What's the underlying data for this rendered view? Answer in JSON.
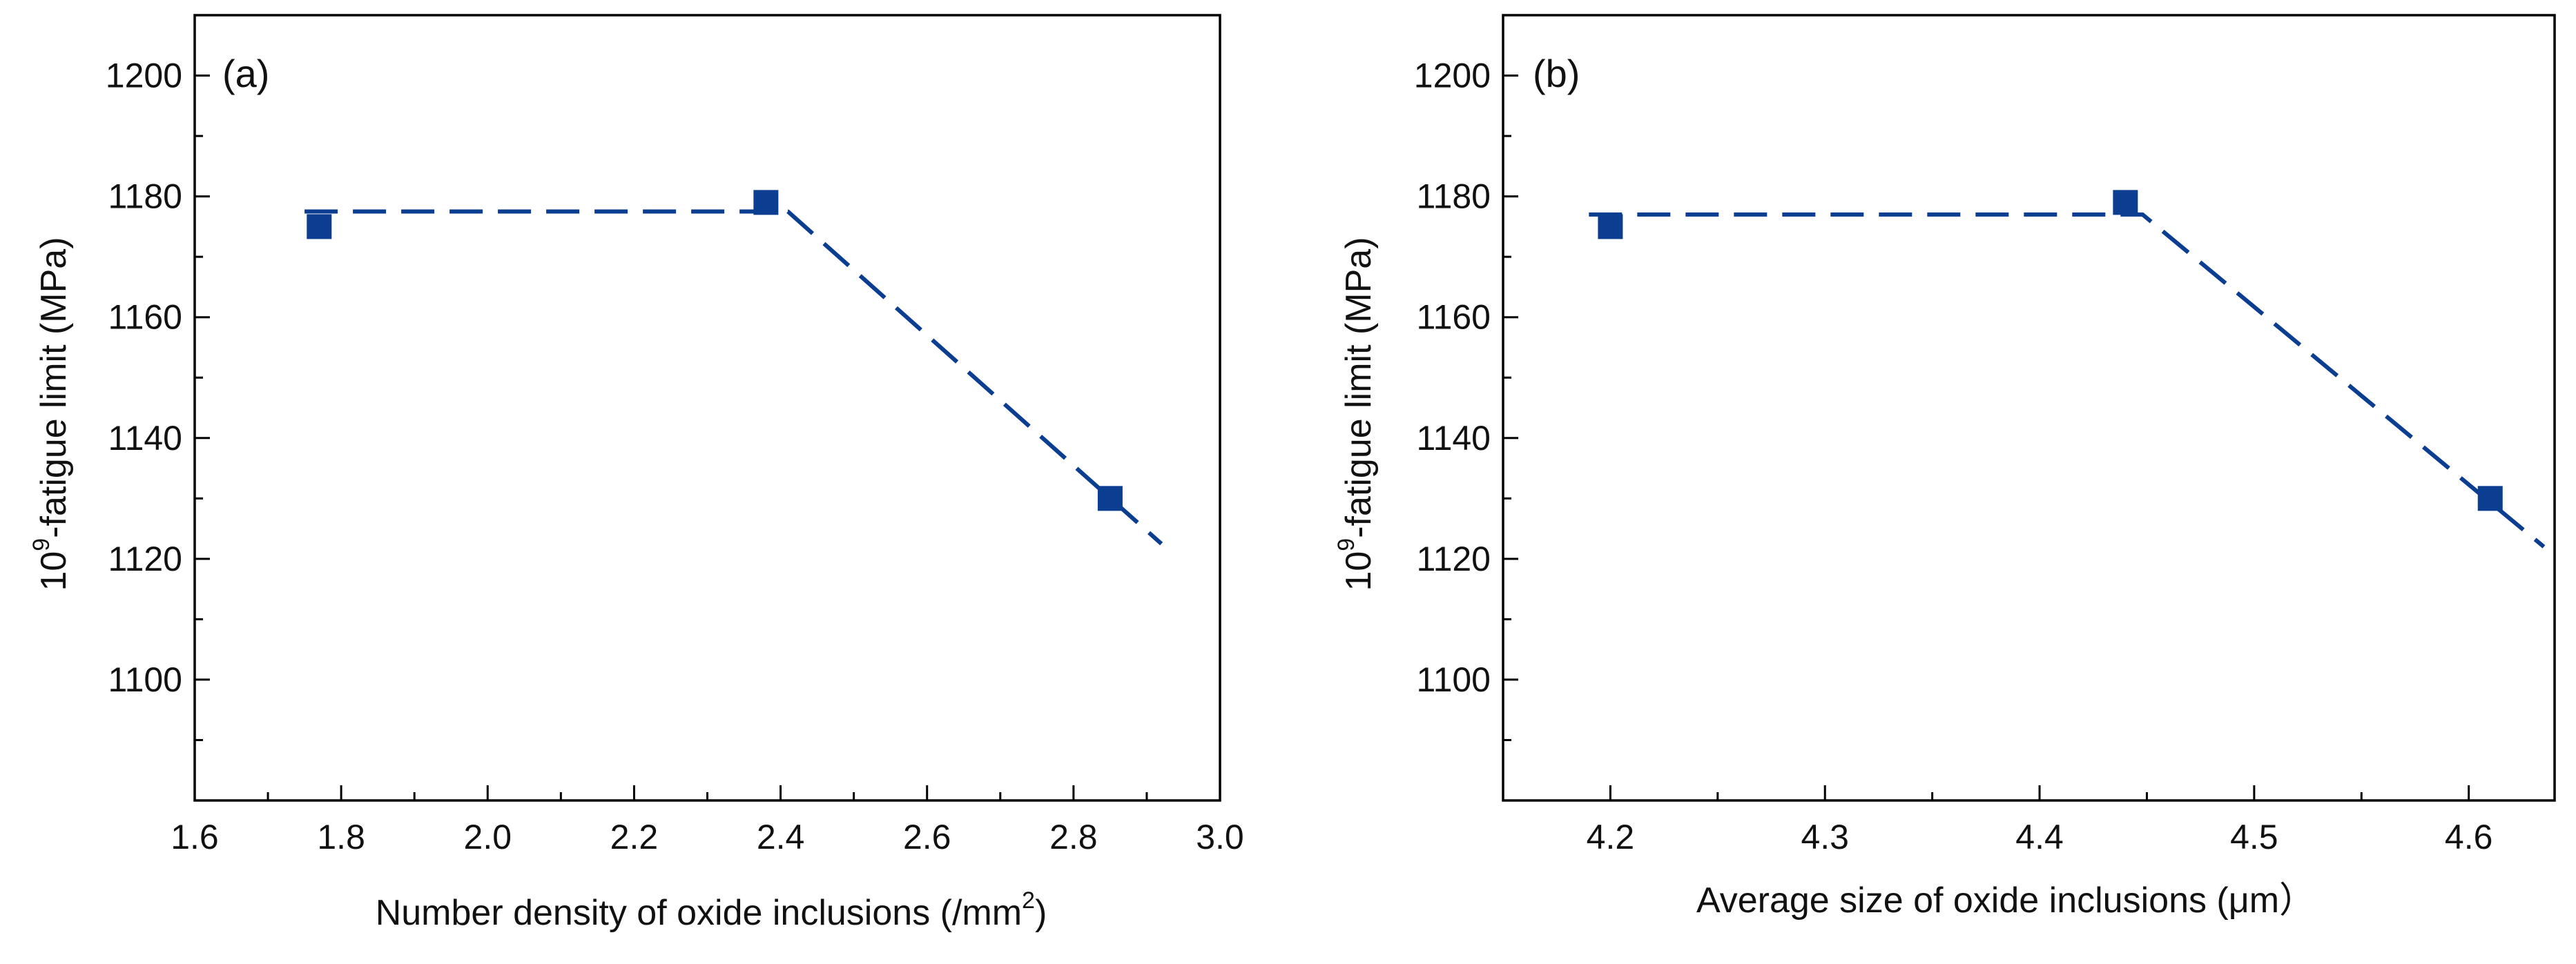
{
  "chart_data": [
    {
      "type": "scatter",
      "panel_label": "(a)",
      "xlabel_main": "Number density of oxide inclusions (/mm",
      "xlabel_sup": "2",
      "xlabel_end": ")",
      "ylabel_base": "10",
      "ylabel_sup": "9",
      "ylabel_main": "-fatigue limit (MPa)",
      "xlim": [
        1.6,
        3.0
      ],
      "ylim": [
        1080,
        1210
      ],
      "xticks": [
        "1.6",
        "1.8",
        "2.0",
        "2.2",
        "2.4",
        "2.6",
        "2.8",
        "3.0"
      ],
      "yticks": [
        "1100",
        "1120",
        "1140",
        "1160",
        "1180",
        "1200"
      ],
      "points": [
        {
          "x": 1.77,
          "y": 1175
        },
        {
          "x": 2.38,
          "y": 1179
        },
        {
          "x": 2.85,
          "y": 1130
        }
      ],
      "fit_line": [
        {
          "x": 1.75,
          "y": 1177.5
        },
        {
          "x": 2.41,
          "y": 1177.5
        },
        {
          "x": 2.92,
          "y": 1122.5
        }
      ],
      "color": "#0b3d91"
    },
    {
      "type": "scatter",
      "panel_label": "(b)",
      "xlabel_main": "Average size of oxide inclusions (μm）",
      "xlabel_sup": "",
      "xlabel_end": "",
      "ylabel_base": "10",
      "ylabel_sup": "9",
      "ylabel_main": "-fatigue limit (MPa)",
      "xlim": [
        4.15,
        4.64
      ],
      "ylim": [
        1080,
        1210
      ],
      "xticks": [
        "4.2",
        "4.3",
        "4.4",
        "4.5",
        "4.6"
      ],
      "yticks": [
        "1100",
        "1120",
        "1140",
        "1160",
        "1180",
        "1200"
      ],
      "points": [
        {
          "x": 4.2,
          "y": 1175
        },
        {
          "x": 4.44,
          "y": 1179
        },
        {
          "x": 4.61,
          "y": 1130
        }
      ],
      "fit_line": [
        {
          "x": 4.19,
          "y": 1177
        },
        {
          "x": 4.448,
          "y": 1177
        },
        {
          "x": 4.635,
          "y": 1122
        }
      ],
      "color": "#0b3d91"
    }
  ]
}
